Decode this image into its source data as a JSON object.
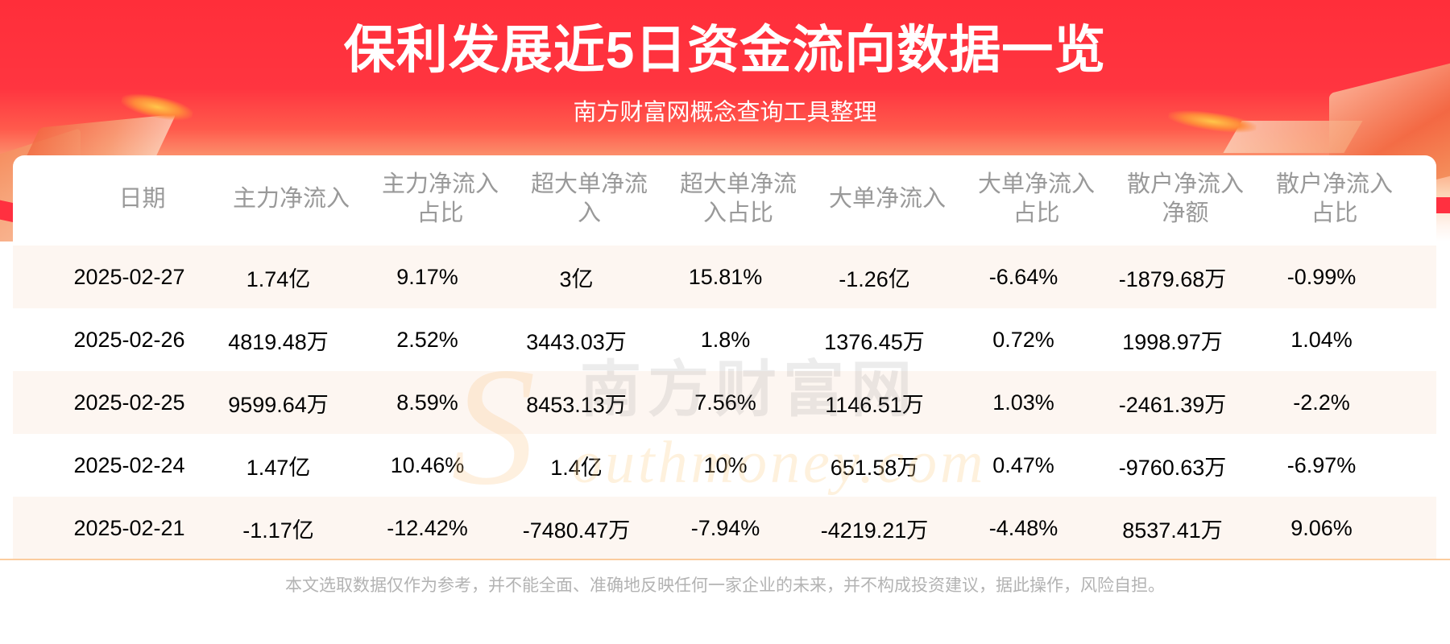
{
  "header": {
    "title": "保利发展近5日资金流向数据一览",
    "subtitle": "南方财富网概念查询工具整理"
  },
  "watermark": {
    "letter": "S",
    "chinese": "南方财富网",
    "english": "outhmoney.com"
  },
  "table": {
    "columns": [
      {
        "line1": "日期",
        "line2": ""
      },
      {
        "line1": "主力净流入",
        "line2": ""
      },
      {
        "line1": "主力净流入",
        "line2": "占比"
      },
      {
        "line1": "超大单净流",
        "line2": "入"
      },
      {
        "line1": "超大单净流",
        "line2": "入占比"
      },
      {
        "line1": "大单净流入",
        "line2": ""
      },
      {
        "line1": "大单净流入",
        "line2": "占比"
      },
      {
        "line1": "散户净流入",
        "line2": "净额"
      },
      {
        "line1": "散户净流入",
        "line2": "占比"
      }
    ],
    "rows": [
      [
        "2025-02-27",
        "1.74亿",
        "9.17%",
        "3亿",
        "15.81%",
        "-1.26亿",
        "-6.64%",
        "-1879.68万",
        "-0.99%"
      ],
      [
        "2025-02-26",
        "4819.48万",
        "2.52%",
        "3443.03万",
        "1.8%",
        "1376.45万",
        "0.72%",
        "1998.97万",
        "1.04%"
      ],
      [
        "2025-02-25",
        "9599.64万",
        "8.59%",
        "8453.13万",
        "7.56%",
        "1146.51万",
        "1.03%",
        "-2461.39万",
        "-2.2%"
      ],
      [
        "2025-02-24",
        "1.47亿",
        "10.46%",
        "1.4亿",
        "10%",
        "651.58万",
        "0.47%",
        "-9760.63万",
        "-6.97%"
      ],
      [
        "2025-02-21",
        "-1.17亿",
        "-12.42%",
        "-7480.47万",
        "-7.94%",
        "-4219.21万",
        "-4.48%",
        "8537.41万",
        "9.06%"
      ]
    ]
  },
  "footer": {
    "disclaimer": "本文选取数据仅作为参考，并不能全面、准确地反映任何一家企业的未来，并不构成投资建议，据此操作，风险自担。"
  },
  "colors": {
    "banner_red": "#ff2e3a",
    "header_text": "#999999",
    "stripe": "#fdf6f1",
    "divider": "#fbcc9e",
    "footnote": "#b3b3b3"
  }
}
